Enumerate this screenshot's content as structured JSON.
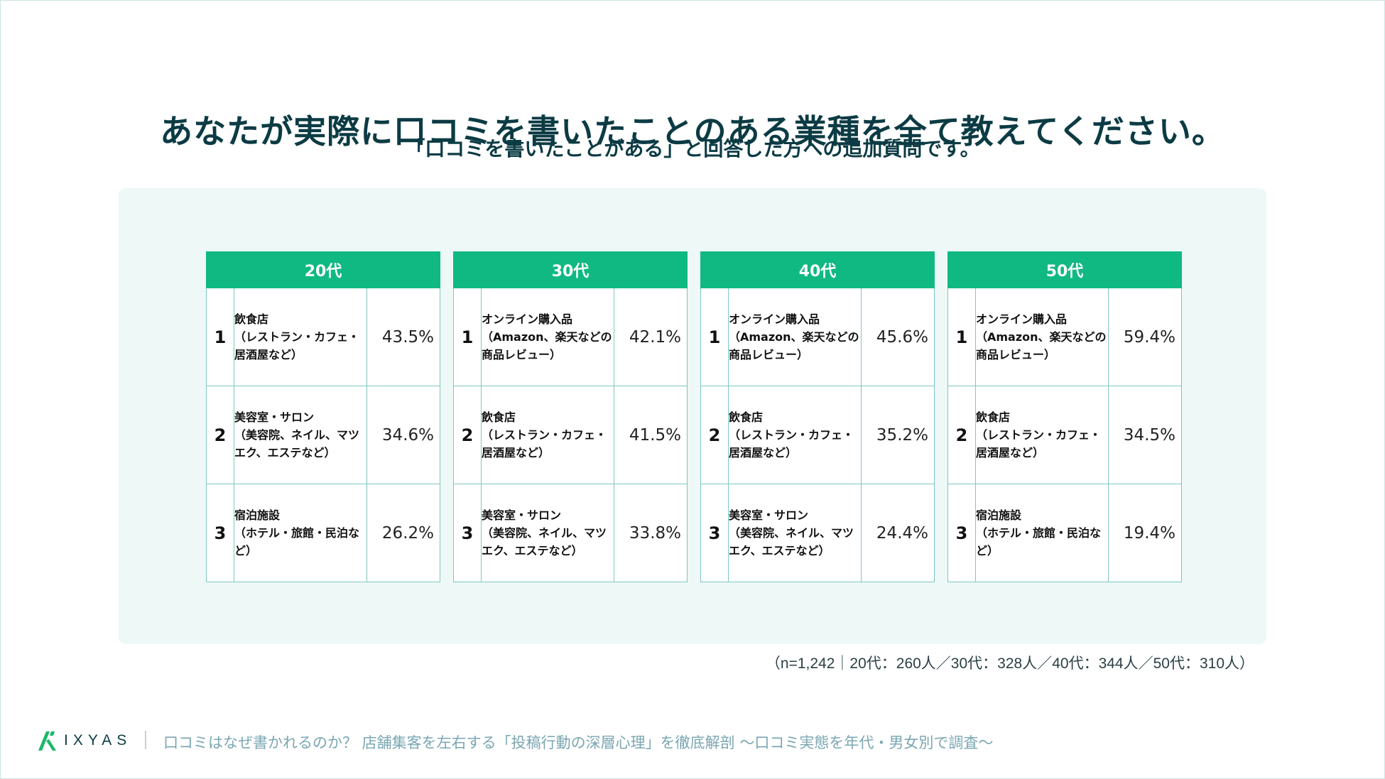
{
  "title": "あなたが実際に口コミを書いたことのある業種を全て教えてください。",
  "subtitle": "「口コミを書いたことがある」と回答した方への追加質問です。",
  "colors": {
    "header_green": "#10b981",
    "panel_bg": "#edf8f7",
    "border": "#7fc7bf",
    "title": "#0c3b44",
    "footer_text": "#7aa6b2"
  },
  "tables": [
    {
      "header": "20代",
      "rows": [
        {
          "rank": "1",
          "name": "飲食店",
          "desc": "（レストラン・カフェ・居酒屋など）",
          "pct": "43.5%"
        },
        {
          "rank": "2",
          "name": "美容室・サロン",
          "desc": "（美容院、ネイル、マツエク、エステなど）",
          "pct": "34.6%"
        },
        {
          "rank": "3",
          "name": "宿泊施設",
          "desc": "（ホテル・旅館・民泊など）",
          "pct": "26.2%"
        }
      ]
    },
    {
      "header": "30代",
      "rows": [
        {
          "rank": "1",
          "name": "オンライン購入品",
          "desc": "（Amazon、楽天などの商品レビュー）",
          "pct": "42.1%"
        },
        {
          "rank": "2",
          "name": "飲食店",
          "desc": "（レストラン・カフェ・居酒屋など）",
          "pct": "41.5%"
        },
        {
          "rank": "3",
          "name": "美容室・サロン",
          "desc": "（美容院、ネイル、マツエク、エステなど）",
          "pct": "33.8%"
        }
      ]
    },
    {
      "header": "40代",
      "rows": [
        {
          "rank": "1",
          "name": "オンライン購入品",
          "desc": "（Amazon、楽天などの商品レビュー）",
          "pct": "45.6%"
        },
        {
          "rank": "2",
          "name": "飲食店",
          "desc": "（レストラン・カフェ・居酒屋など）",
          "pct": "35.2%"
        },
        {
          "rank": "3",
          "name": "美容室・サロン",
          "desc": "（美容院、ネイル、マツエク、エステなど）",
          "pct": "24.4%"
        }
      ]
    },
    {
      "header": "50代",
      "rows": [
        {
          "rank": "1",
          "name": "オンライン購入品",
          "desc": "（Amazon、楽天などの商品レビュー）",
          "pct": "59.4%"
        },
        {
          "rank": "2",
          "name": "飲食店",
          "desc": "（レストラン・カフェ・居酒屋など）",
          "pct": "34.5%"
        },
        {
          "rank": "3",
          "name": "宿泊施設",
          "desc": "（ホテル・旅館・民泊など）",
          "pct": "19.4%"
        }
      ]
    }
  ],
  "note": "（n=1,242｜20代：260人／30代：328人／40代：344人／50代：310人）",
  "footer": {
    "logo_text": "IXYAS",
    "logo_icon": "ixyas-logo-mark",
    "text": "口コミはなぜ書かれるのか？ 店舗集客を左右する「投稿行動の深層心理」を徹底解剖 〜口コミ実態を年代・男女別で調査〜"
  }
}
